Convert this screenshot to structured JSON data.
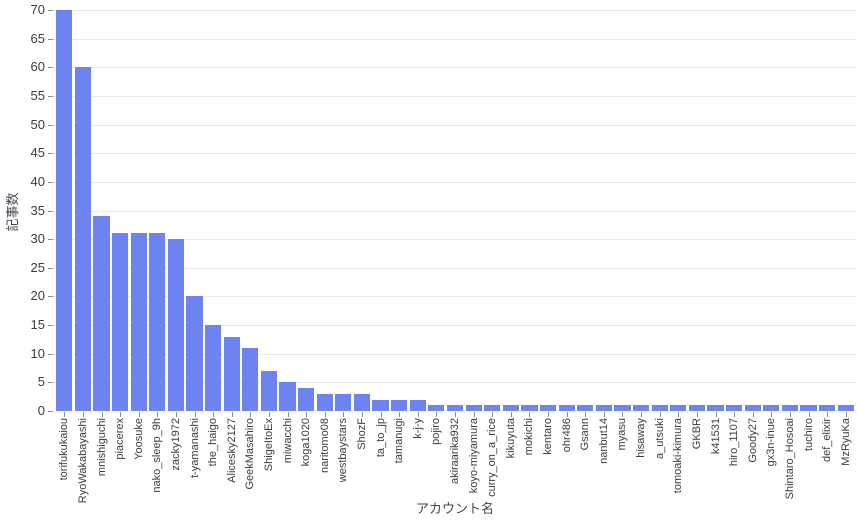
{
  "chart_data": {
    "type": "bar",
    "title": "",
    "xlabel": "アカウント名",
    "ylabel": "記事数",
    "categories": [
      "torifukukaiou",
      "RyoWakabayashi",
      "mnishiguchi",
      "piacerex",
      "Yoosuke",
      "nako_sleep_9h",
      "zacky1972",
      "t-yamanashi",
      "the_haigo",
      "Alicesky2127",
      "GeekMasahiro",
      "ShigeItoEx",
      "miwacchi",
      "koga1020",
      "naritomo08",
      "westbaystars",
      "ShozF",
      "ta_to_jp",
      "tamanugi",
      "k-j-y",
      "pojiro",
      "akiraarika932",
      "koyo-miyamura",
      "curry_on_a_rice",
      "kikuyuta",
      "mokichi",
      "kentaro",
      "ohr486",
      "Gsann",
      "nanbut14",
      "myasu",
      "hisaway",
      "a_utsuki",
      "tomoaki-kimura",
      "GKBR",
      "k41531",
      "hiro_1107",
      "Goody27",
      "gx3n-inue",
      "Shintaro_Hosoai",
      "tuchiro",
      "def_elixir",
      "MzRyuKa"
    ],
    "values": [
      70,
      60,
      34,
      31,
      31,
      31,
      30,
      20,
      15,
      13,
      11,
      7,
      5,
      4,
      3,
      3,
      3,
      2,
      2,
      2,
      1,
      1,
      1,
      1,
      1,
      1,
      1,
      1,
      1,
      1,
      1,
      1,
      1,
      1,
      1,
      1,
      1,
      1,
      1,
      1,
      1,
      1,
      1
    ],
    "ylim": [
      0,
      70
    ],
    "ytick_step": 5,
    "grid": "horizontal",
    "legend": "none",
    "bar_color": "#6c83f0",
    "grid_color": "#e9e9e9",
    "tick_text_color": "#3c3c3c",
    "axis_title_color": "#404552",
    "background_color": "#ffffff"
  }
}
